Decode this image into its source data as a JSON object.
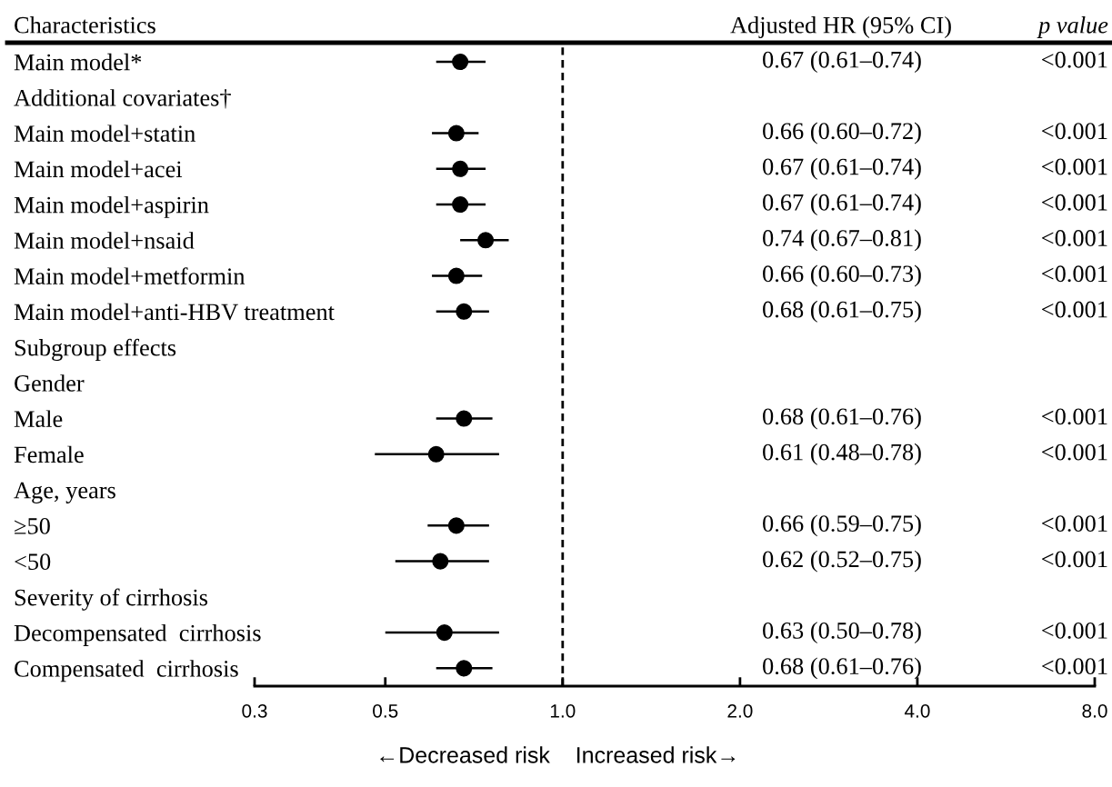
{
  "chart_data": {
    "type": "scatter",
    "orientation": "horizontal",
    "ylabel": "Characteristics",
    "categories": [
      "Main model*",
      "Additional covariates†",
      "Main model+statin",
      "Main model+acei",
      "Main model+aspirin",
      "Main model+nsaid",
      "Main model+metformin",
      "Main model+anti-HBV treatment",
      "Subgroup effects",
      "Gender",
      "Male",
      "Female",
      "Age, years",
      "≥50",
      "<50",
      "Severity of cirrhosis",
      "Decompensated  cirrhosis",
      "Compensated  cirrhosis"
    ],
    "values": [
      0.67,
      null,
      0.66,
      0.67,
      0.67,
      0.74,
      0.66,
      0.68,
      null,
      null,
      0.68,
      0.61,
      null,
      0.66,
      0.62,
      null,
      0.63,
      0.68
    ],
    "errors": [
      [
        0.61,
        0.74
      ],
      null,
      [
        0.6,
        0.72
      ],
      [
        0.61,
        0.74
      ],
      [
        0.61,
        0.74
      ],
      [
        0.67,
        0.81
      ],
      [
        0.6,
        0.73
      ],
      [
        0.61,
        0.75
      ],
      null,
      null,
      [
        0.61,
        0.76
      ],
      [
        0.48,
        0.78
      ],
      null,
      [
        0.59,
        0.75
      ],
      [
        0.52,
        0.75
      ],
      null,
      [
        0.5,
        0.78
      ],
      [
        0.61,
        0.76
      ]
    ],
    "color": "#000000",
    "marker": "circle",
    "log": "x",
    "xlim": [
      0.3,
      8
    ],
    "xticks": [
      0.3,
      0.5,
      {
        "value": 1,
        "label": "1.0"
      },
      {
        "value": 2,
        "label": "2.0"
      },
      {
        "value": 4,
        "label": "4.0"
      },
      {
        "value": 8,
        "label": "8.0"
      }
    ],
    "ref_lines": [
      {
        "axis": "x",
        "value": 1,
        "color": "#000000",
        "line_style": "dashed"
      }
    ],
    "grid": false,
    "annotations": [
      "Adjusted HR (95% CI)",
      "p value",
      "0.67 (0.61–0.74)",
      "<0.001",
      "0.66 (0.60–0.72)",
      "<0.001",
      "0.67 (0.61–0.74)",
      "<0.001",
      "0.67 (0.61–0.74)",
      "<0.001",
      "0.74 (0.67–0.81)",
      "<0.001",
      "0.66 (0.60–0.73)",
      "<0.001",
      "0.68 (0.61–0.75)",
      "<0.001",
      "0.68 (0.61–0.76)",
      "<0.001",
      "0.61 (0.48–0.78)",
      "<0.001",
      "0.66 (0.59–0.75)",
      "<0.001",
      "0.62 (0.52–0.75)",
      "<0.001",
      "0.63 (0.50–0.78)",
      "<0.001",
      "0.68 (0.61–0.76)",
      "<0.001",
      "←Decreased risk",
      "Increased risk→"
    ]
  }
}
